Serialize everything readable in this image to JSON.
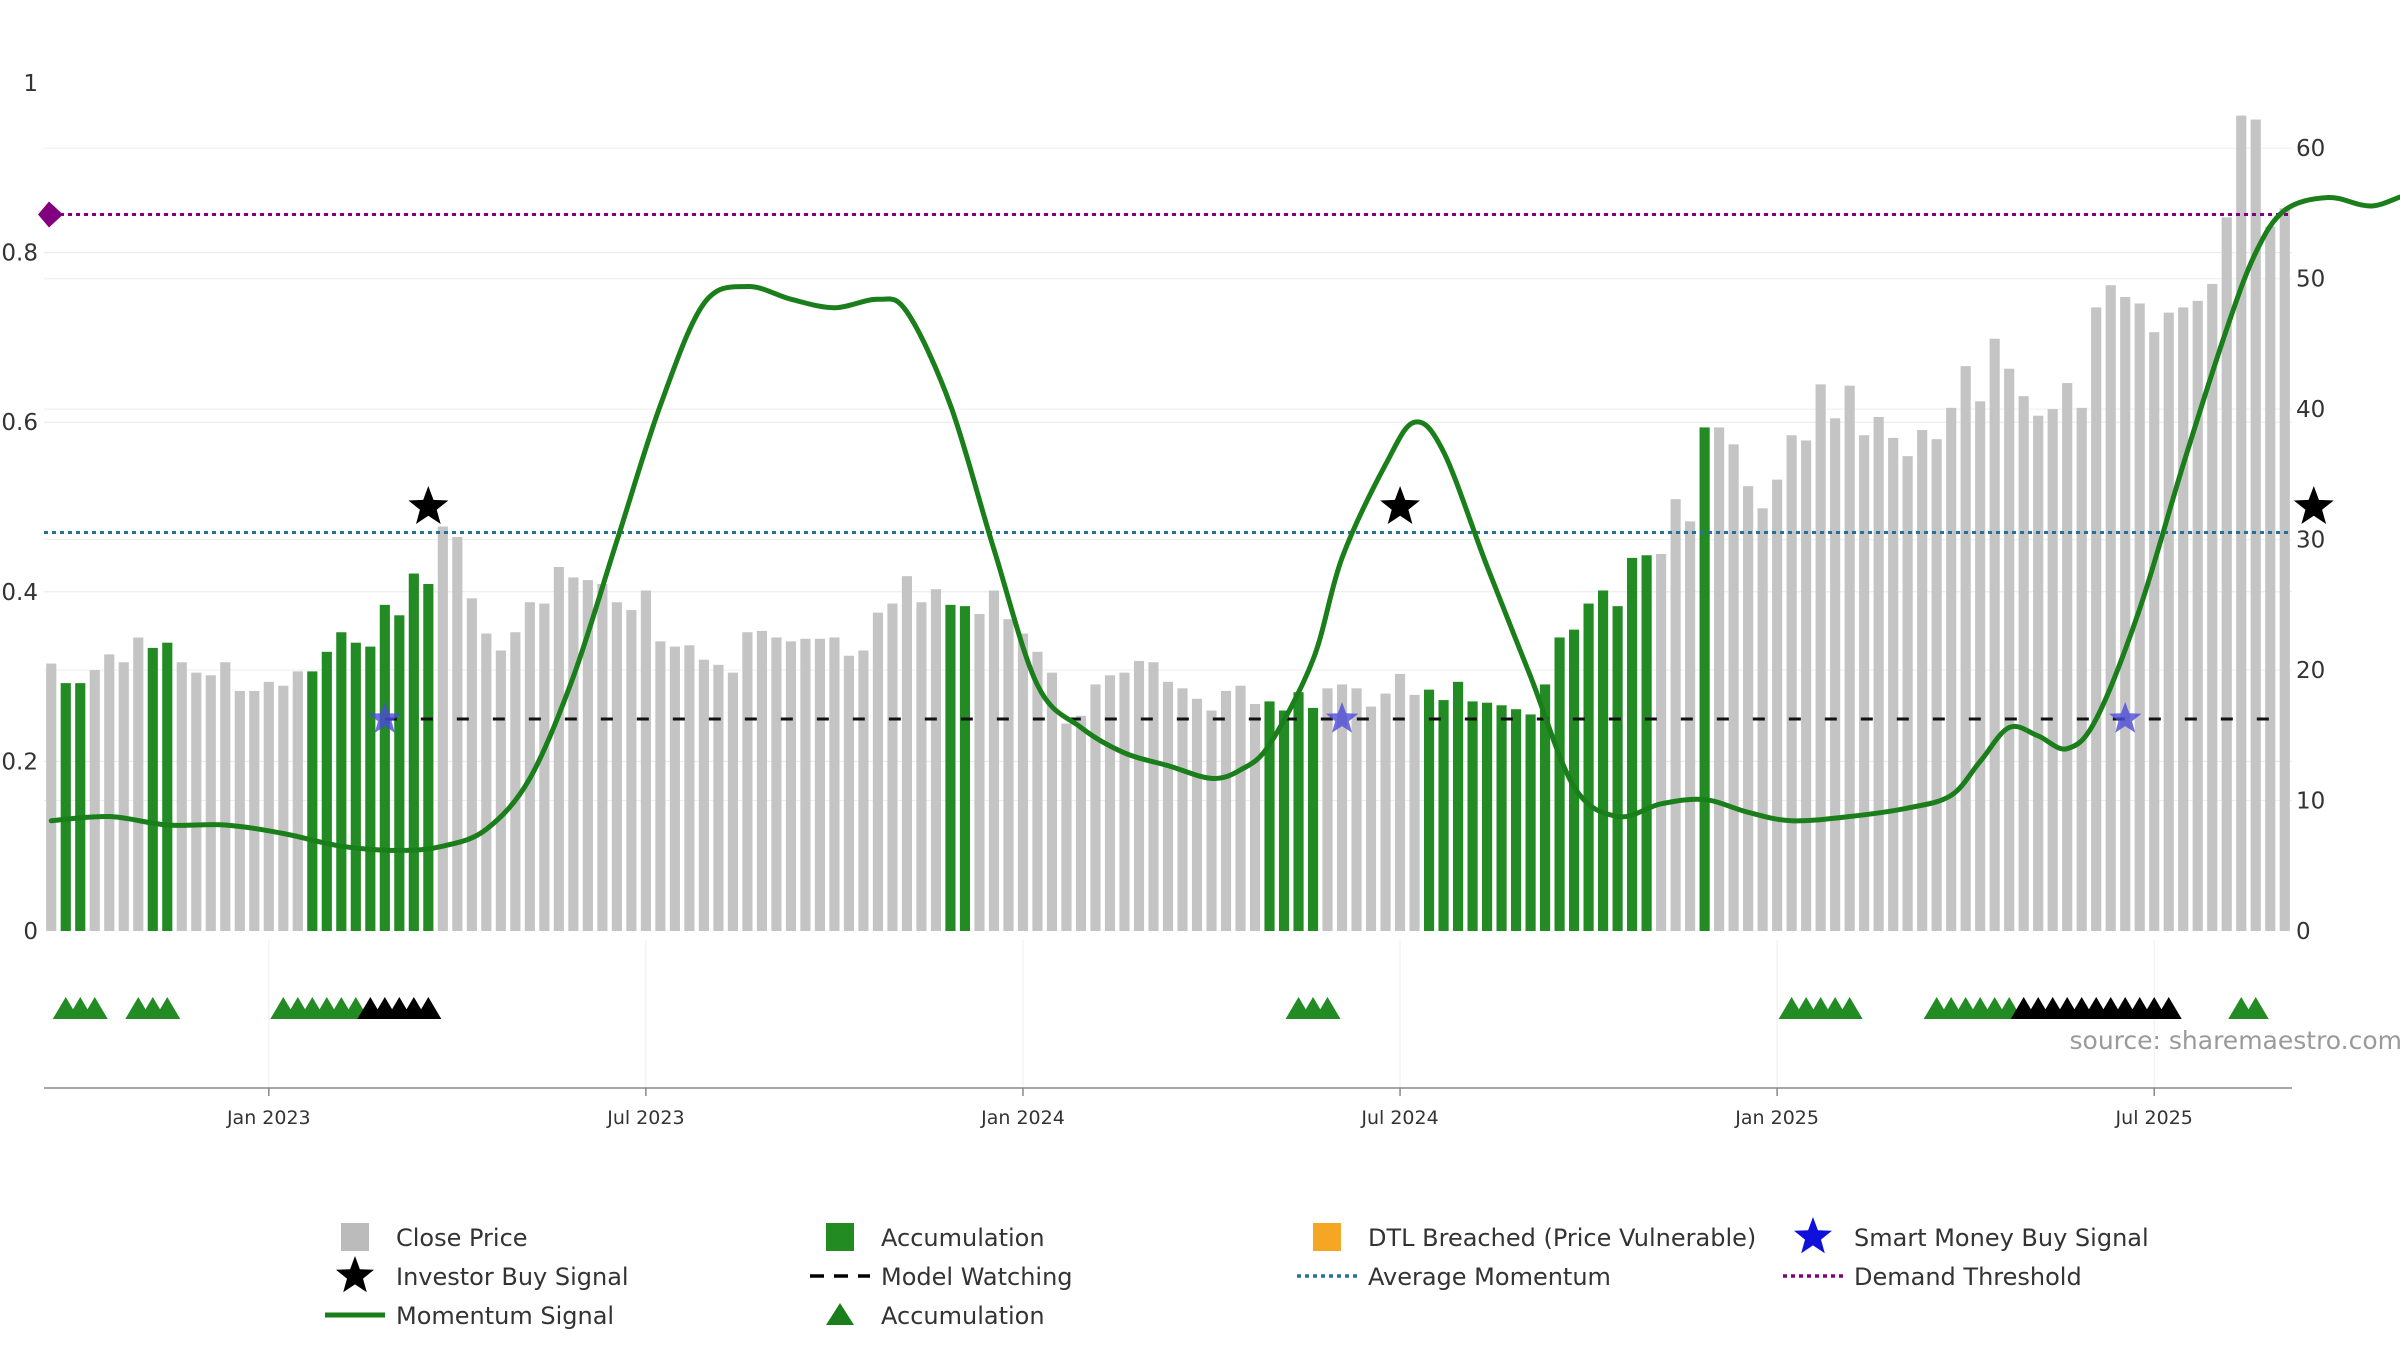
{
  "source_text": "source: sharemaestro.com",
  "chart_data": {
    "type": "bar",
    "left_axis": {
      "range": [
        0,
        1
      ],
      "ticks": [
        "0",
        "0.2",
        "0.4",
        "0.6",
        "0.8",
        "1"
      ]
    },
    "right_axis": {
      "range": [
        0,
        65
      ],
      "ticks": [
        "0",
        "10",
        "20",
        "30",
        "40",
        "50",
        "60"
      ]
    },
    "x_tick_labels": [
      "Jan 2023",
      "Jul 2023",
      "Jan 2024",
      "Jul 2024",
      "Jan 2025",
      "Jul 2025"
    ],
    "grid": true,
    "legend_position": "bottom",
    "legend": [
      {
        "label": "Close Price",
        "symbol": "square",
        "color": "#bbbbbb"
      },
      {
        "label": "Accumulation",
        "symbol": "square",
        "color": "#228b22"
      },
      {
        "label": "DTL Breached (Price Vulnerable)",
        "symbol": "square",
        "color": "#f5a623"
      },
      {
        "label": "Smart Money Buy Signal",
        "symbol": "star",
        "color": "#1010dd"
      },
      {
        "label": "Investor Buy Signal",
        "symbol": "star",
        "color": "#000000"
      },
      {
        "label": "Model Watching",
        "symbol": "dash",
        "color": "#000000"
      },
      {
        "label": "Average Momentum",
        "symbol": "dot",
        "color": "#2a6f97"
      },
      {
        "label": "Demand Threshold",
        "symbol": "dot",
        "color": "#800080"
      },
      {
        "label": "Momentum Signal",
        "symbol": "line",
        "color": "#1a7f1a"
      },
      {
        "label": "Accumulation",
        "symbol": "triangle",
        "color": "#1a7f1a"
      }
    ],
    "bar_categories": [
      "grey",
      "green",
      "grey",
      "green",
      "grey",
      "green",
      "grey",
      "green",
      "grey",
      "green",
      "grey",
      "green",
      "grey",
      "green",
      "grey",
      "green",
      "grey",
      "orange"
    ],
    "bar_segment_lengths": [
      1,
      2,
      4,
      2,
      9,
      9,
      35,
      2,
      20,
      4,
      7,
      16,
      3,
      1,
      50,
      1,
      6,
      1
    ],
    "bar_values": [
      20.5,
      19,
      19,
      20,
      21.2,
      20.6,
      22.5,
      21.7,
      22.1,
      20.6,
      19.8,
      19.6,
      20.6,
      18.4,
      18.4,
      19.1,
      18.8,
      19.9,
      19.9,
      21.4,
      22.9,
      22.1,
      21.8,
      25,
      24.2,
      27.4,
      26.6,
      31,
      30.2,
      25.5,
      22.8,
      21.5,
      22.9,
      25.2,
      25.1,
      27.9,
      27.1,
      26.9,
      26.6,
      25.2,
      24.6,
      26.1,
      22.2,
      21.8,
      21.9,
      20.8,
      20.4,
      19.8,
      22.9,
      23,
      22.5,
      22.2,
      22.4,
      22.4,
      22.5,
      21.1,
      21.5,
      24.4,
      25.1,
      27.2,
      25.2,
      26.2,
      25,
      24.9,
      24.3,
      26.1,
      23.9,
      22.8,
      21.4,
      19.8,
      15.9,
      16.5,
      18.9,
      19.6,
      19.8,
      20.7,
      20.6,
      19.1,
      18.6,
      17.8,
      16.9,
      18.4,
      18.8,
      17.4,
      17.6,
      16.9,
      18.3,
      17.1,
      18.6,
      18.9,
      18.6,
      17.2,
      18.2,
      19.7,
      18.1,
      18.5,
      17.7,
      19.1,
      17.6,
      17.5,
      17.3,
      17,
      16.6,
      18.9,
      22.5,
      23.1,
      25.1,
      26.1,
      24.9,
      28.6,
      28.8,
      28.9,
      33.1,
      31.4,
      38.6,
      38.6,
      37.3,
      34.1,
      32.4,
      34.6,
      38,
      37.6,
      41.9,
      39.3,
      41.8,
      38,
      39.4,
      37.8,
      36.4,
      38.4,
      37.7,
      40.1,
      43.3,
      40.6,
      45.4,
      43.1,
      41,
      39.5,
      40,
      42,
      40.1,
      47.8,
      49.5,
      48.6,
      48.1,
      45.9,
      47.4,
      47.8,
      48.3,
      49.6,
      54.7,
      62.5,
      62.2,
      54,
      55.4
    ],
    "momentum_signal": [
      [
        0,
        0.13
      ],
      [
        4,
        0.135
      ],
      [
        8,
        0.125
      ],
      [
        12,
        0.125
      ],
      [
        16,
        0.115
      ],
      [
        20,
        0.1
      ],
      [
        24,
        0.095
      ],
      [
        27,
        0.1
      ],
      [
        30,
        0.12
      ],
      [
        33,
        0.18
      ],
      [
        36,
        0.3
      ],
      [
        39,
        0.46
      ],
      [
        42,
        0.62
      ],
      [
        45,
        0.74
      ],
      [
        48,
        0.76
      ],
      [
        51,
        0.745
      ],
      [
        54,
        0.735
      ],
      [
        57,
        0.745
      ],
      [
        59,
        0.73
      ],
      [
        62,
        0.62
      ],
      [
        65,
        0.45
      ],
      [
        68,
        0.29
      ],
      [
        71,
        0.24
      ],
      [
        74,
        0.21
      ],
      [
        77,
        0.195
      ],
      [
        80,
        0.18
      ],
      [
        82,
        0.19
      ],
      [
        84,
        0.22
      ],
      [
        87,
        0.32
      ],
      [
        89,
        0.44
      ],
      [
        92,
        0.55
      ],
      [
        94,
        0.6
      ],
      [
        96,
        0.565
      ],
      [
        99,
        0.43
      ],
      [
        102,
        0.3
      ],
      [
        105,
        0.17
      ],
      [
        108,
        0.135
      ],
      [
        111,
        0.15
      ],
      [
        114,
        0.155
      ],
      [
        117,
        0.14
      ],
      [
        120,
        0.13
      ],
      [
        124,
        0.135
      ],
      [
        128,
        0.145
      ],
      [
        131,
        0.16
      ],
      [
        133,
        0.2
      ],
      [
        135,
        0.24
      ],
      [
        137,
        0.23
      ],
      [
        139,
        0.215
      ],
      [
        141,
        0.25
      ],
      [
        144,
        0.38
      ],
      [
        147,
        0.55
      ],
      [
        150,
        0.71
      ],
      [
        152,
        0.8
      ],
      [
        154,
        0.85
      ],
      [
        157,
        0.865
      ],
      [
        160,
        0.855
      ],
      [
        163,
        0.87
      ],
      [
        166,
        0.86
      ],
      [
        169,
        0.835
      ],
      [
        172,
        0.85
      ],
      [
        175,
        0.835
      ],
      [
        178,
        0.83
      ],
      [
        181,
        0.84
      ],
      [
        184,
        0.855
      ],
      [
        187,
        0.855
      ],
      [
        188,
        0.845
      ],
      [
        189,
        0.85
      ],
      [
        190,
        0.85
      ],
      [
        191,
        0.835
      ],
      [
        192,
        0.81
      ],
      [
        193,
        0.82
      ]
    ],
    "momentum_signal_range": [
      0,
      1
    ],
    "average_momentum": 0.47,
    "demand_threshold": 0.845,
    "model_watching_level": 0.25,
    "investor_buy_signal": [
      [
        26,
        0.5
      ],
      [
        93,
        0.5
      ],
      [
        156,
        0.5
      ]
    ],
    "smart_money_buy_signal": [
      [
        23,
        0.25
      ],
      [
        89,
        0.25
      ],
      [
        143,
        0.25
      ]
    ],
    "accumulation_triangle_runs": [
      [
        1,
        3,
        "green"
      ],
      [
        6,
        8,
        "green"
      ],
      [
        16,
        21,
        "green"
      ],
      [
        22,
        26,
        "black"
      ],
      [
        86,
        88,
        "green"
      ],
      [
        120,
        124,
        "green"
      ],
      [
        130,
        135,
        "green"
      ],
      [
        136,
        146,
        "black"
      ],
      [
        151,
        152,
        "green"
      ]
    ]
  }
}
